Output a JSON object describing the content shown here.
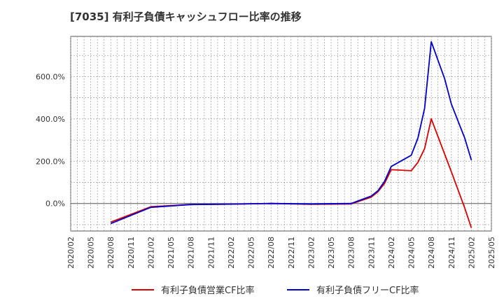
{
  "chart_data": {
    "type": "line",
    "title": "[7035]  有利子負債キャッシュフロー比率の推移",
    "xlabel": "",
    "ylabel": "",
    "ylim": [
      -130,
      790
    ],
    "y_ticks": [
      0,
      200,
      400,
      600
    ],
    "y_tick_labels": [
      "0.0%",
      "200.0%",
      "400.0%",
      "600.0%"
    ],
    "x_tick_labels": [
      "2020/02",
      "2020/05",
      "2020/08",
      "2020/11",
      "2021/02",
      "2021/05",
      "2021/08",
      "2021/11",
      "2022/02",
      "2022/05",
      "2022/08",
      "2022/11",
      "2023/02",
      "2023/05",
      "2023/08",
      "2023/11",
      "2024/02",
      "2024/05",
      "2024/08",
      "2024/11",
      "2025/02",
      "2025/05"
    ],
    "grid": true,
    "legend_position": "bottom",
    "series": [
      {
        "name": "有利子負債営業CF比率",
        "color": "#dd0000",
        "points": [
          {
            "x": "2020/08",
            "y": -88
          },
          {
            "x": "2021/02",
            "y": -15
          },
          {
            "x": "2021/08",
            "y": -5
          },
          {
            "x": "2022/02",
            "y": -3
          },
          {
            "x": "2022/08",
            "y": 0
          },
          {
            "x": "2023/02",
            "y": -4
          },
          {
            "x": "2023/08",
            "y": -2
          },
          {
            "x": "2023/11",
            "y": 30
          },
          {
            "x": "2023/12",
            "y": 55
          },
          {
            "x": "2024/01",
            "y": 95
          },
          {
            "x": "2024/02",
            "y": 160
          },
          {
            "x": "2024/05",
            "y": 155
          },
          {
            "x": "2024/06",
            "y": 195
          },
          {
            "x": "2024/07",
            "y": 260
          },
          {
            "x": "2024/08",
            "y": 400
          },
          {
            "x": "2024/11",
            "y": 150
          },
          {
            "x": "2025/01",
            "y": -20
          },
          {
            "x": "2025/02",
            "y": -115
          }
        ]
      },
      {
        "name": "有利子負債フリーCF比率",
        "color": "#0000cc",
        "points": [
          {
            "x": "2020/08",
            "y": -95
          },
          {
            "x": "2021/02",
            "y": -18
          },
          {
            "x": "2021/08",
            "y": -5
          },
          {
            "x": "2022/02",
            "y": -3
          },
          {
            "x": "2022/08",
            "y": 0
          },
          {
            "x": "2023/02",
            "y": -2
          },
          {
            "x": "2023/08",
            "y": 0
          },
          {
            "x": "2023/11",
            "y": 35
          },
          {
            "x": "2023/12",
            "y": 60
          },
          {
            "x": "2024/01",
            "y": 105
          },
          {
            "x": "2024/02",
            "y": 175
          },
          {
            "x": "2024/05",
            "y": 228
          },
          {
            "x": "2024/06",
            "y": 310
          },
          {
            "x": "2024/07",
            "y": 450
          },
          {
            "x": "2024/08",
            "y": 765
          },
          {
            "x": "2024/10",
            "y": 590
          },
          {
            "x": "2024/11",
            "y": 470
          },
          {
            "x": "2025/01",
            "y": 310
          },
          {
            "x": "2025/02",
            "y": 205
          }
        ]
      }
    ]
  }
}
